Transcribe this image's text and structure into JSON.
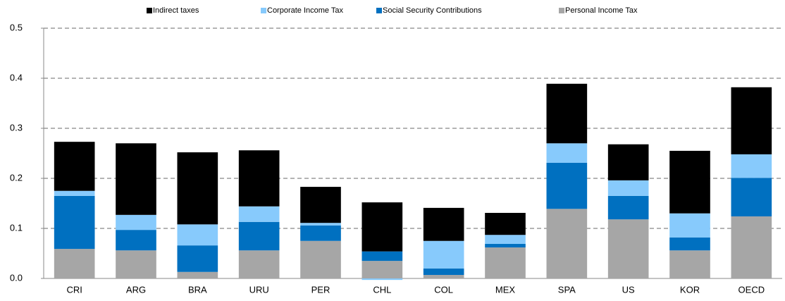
{
  "chart_data": {
    "type": "stacked_bar",
    "categories": [
      "CRI",
      "ARG",
      "BRA",
      "URU",
      "PER",
      "CHL",
      "COL",
      "MEX",
      "SPA",
      "US",
      "KOR",
      "OECD"
    ],
    "series": [
      {
        "name": "Indirect taxes",
        "color": "#000000",
        "values": [
          0.098,
          0.143,
          0.144,
          0.112,
          0.072,
          0.098,
          0.066,
          0.044,
          0.119,
          0.072,
          0.125,
          0.134
        ]
      },
      {
        "name": "Corporate Income Tax",
        "color": "#87cafc",
        "values": [
          0.01,
          0.03,
          0.042,
          0.031,
          0.005,
          -0.003,
          0.055,
          0.018,
          0.039,
          0.031,
          0.048,
          0.047
        ]
      },
      {
        "name": "Social Security Contributions",
        "color": "#0070c0",
        "values": [
          0.106,
          0.041,
          0.053,
          0.057,
          0.031,
          0.019,
          0.013,
          0.007,
          0.092,
          0.047,
          0.026,
          0.077
        ]
      },
      {
        "name": "Personal Income Tax",
        "color": "#a6a6a6",
        "values": [
          0.059,
          0.056,
          0.013,
          0.056,
          0.075,
          0.035,
          0.007,
          0.062,
          0.139,
          0.118,
          0.056,
          0.124
        ]
      }
    ],
    "ylim": [
      0,
      0.5
    ],
    "yticks": [
      {
        "value": 0,
        "label": "0.0"
      },
      0.1,
      0.2,
      0.3,
      0.4,
      0.5
    ],
    "grid": true,
    "legend": "top"
  }
}
